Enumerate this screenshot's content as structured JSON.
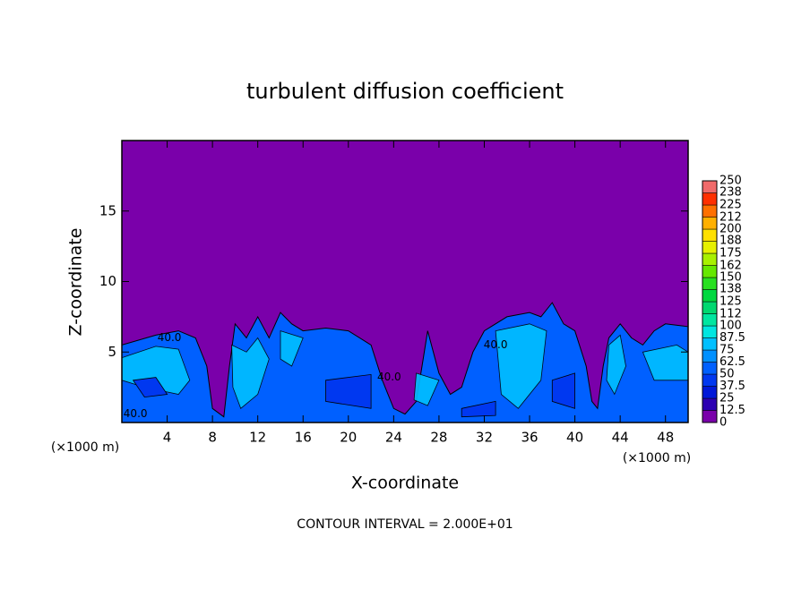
{
  "chart_data": {
    "type": "contour",
    "title": "turbulent diffusion coefficient",
    "x_label": "X-coordinate",
    "y_label": "Z-coordinate",
    "x_unit": "(×1000 m)",
    "y_unit": "(×1000 m)",
    "footer": "CONTOUR INTERVAL = 2.000E+01",
    "xlim": [
      0,
      50
    ],
    "xticks": [
      4,
      8,
      12,
      16,
      20,
      24,
      28,
      32,
      36,
      40,
      44,
      48
    ],
    "ylim": [
      0,
      20
    ],
    "yticks": [
      5,
      10,
      15
    ],
    "contour_labels": [
      "40.0",
      "40.0",
      "40.0",
      "40.0"
    ],
    "colorbar": {
      "levels": [
        0,
        12.5,
        25,
        37.5,
        50,
        62.5,
        75,
        87.5,
        100,
        112,
        125,
        138,
        150,
        162,
        175,
        188,
        200,
        212,
        225,
        238,
        250
      ],
      "colors": [
        "#7a00aa",
        "#2c00b2",
        "#0018d8",
        "#0038f0",
        "#0060ff",
        "#0090ff",
        "#00c0ff",
        "#00e6e0",
        "#00e6a0",
        "#00d870",
        "#00d840",
        "#28e020",
        "#66e800",
        "#a8f000",
        "#e6f000",
        "#ffe000",
        "#ffb000",
        "#ff7000",
        "#ff3000",
        "#f06a6a"
      ]
    }
  }
}
